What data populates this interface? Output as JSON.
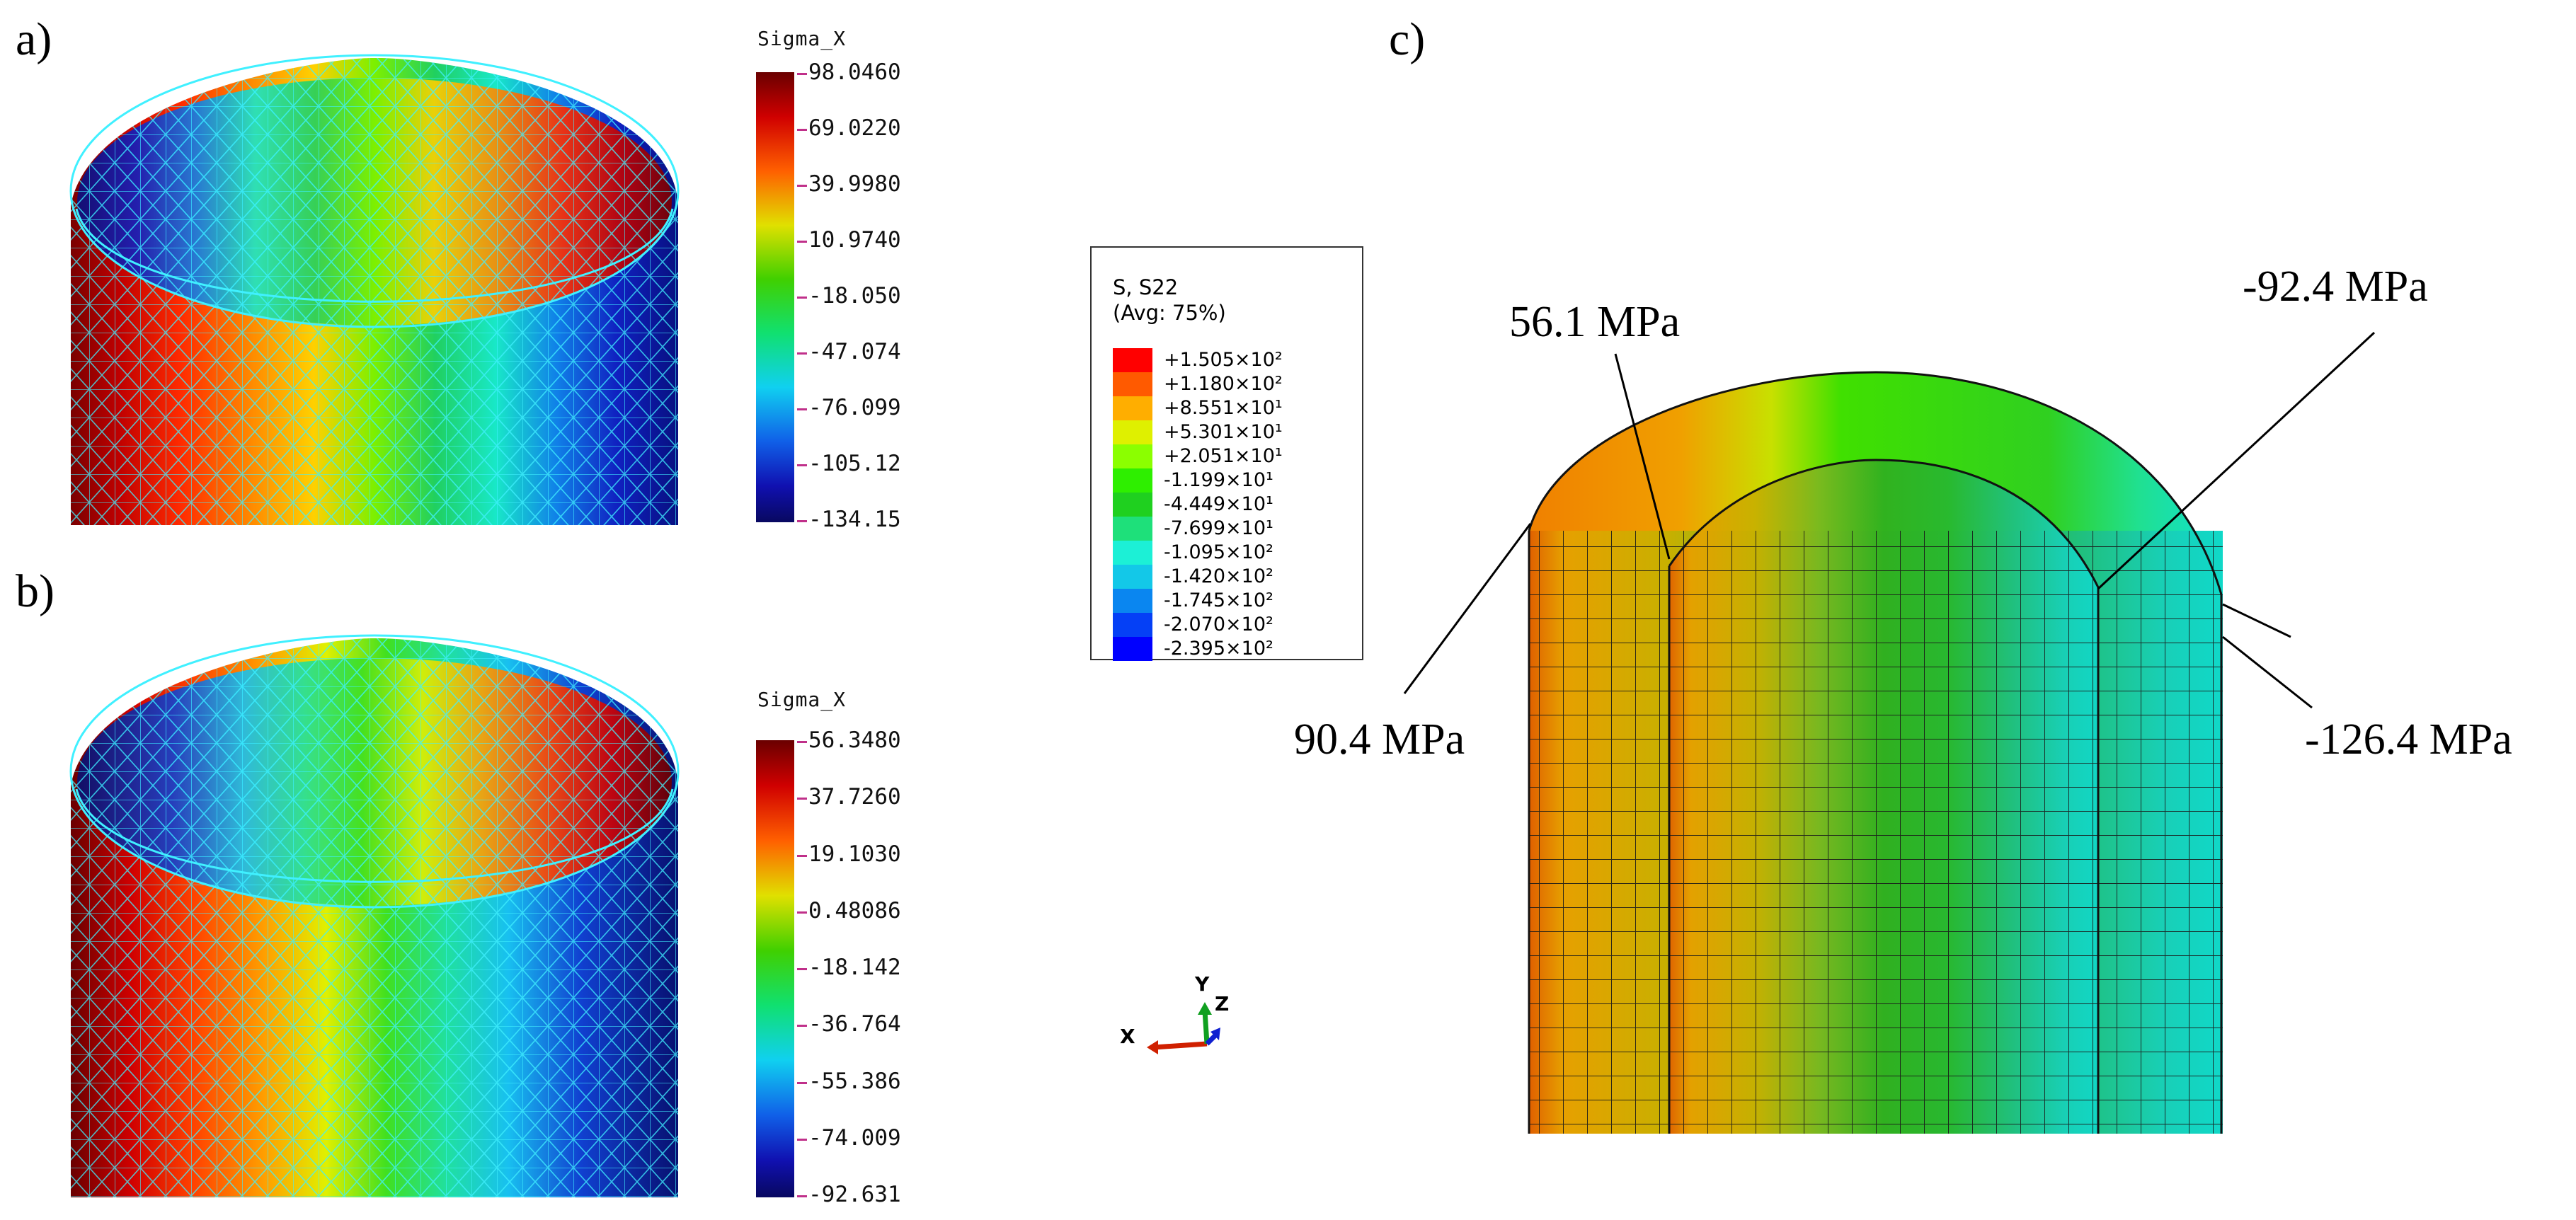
{
  "panels": {
    "a": {
      "label": "a)"
    },
    "b": {
      "label": "b)"
    },
    "c": {
      "label": "c)"
    }
  },
  "colorbar_a": {
    "title": "Sigma_X",
    "values": [
      "98.0460",
      "69.0220",
      "39.9980",
      "10.9740",
      "-18.050",
      "-47.074",
      "-76.099",
      "-105.12",
      "-134.15"
    ]
  },
  "colorbar_b": {
    "title": "Sigma_X",
    "values": [
      "56.3480",
      "37.7260",
      "19.1030",
      "0.48086",
      "-18.142",
      "-36.764",
      "-55.386",
      "-74.009",
      "-92.631"
    ]
  },
  "abaqus_legend": {
    "title1": "S, S22",
    "title2": "(Avg: 75%)",
    "entries": [
      {
        "label": "+1.505×10²",
        "color": "#ff0000"
      },
      {
        "label": "+1.180×10²",
        "color": "#ff5a00"
      },
      {
        "label": "+8.551×10¹",
        "color": "#ffae00"
      },
      {
        "label": "+5.301×10¹",
        "color": "#dff000"
      },
      {
        "label": "+2.051×10¹",
        "color": "#8bff00"
      },
      {
        "label": "-1.199×10¹",
        "color": "#2eef00"
      },
      {
        "label": "-4.449×10¹",
        "color": "#1fd01f"
      },
      {
        "label": "-7.699×10¹",
        "color": "#1ee07a"
      },
      {
        "label": "-1.095×10²",
        "color": "#1cf0d6"
      },
      {
        "label": "-1.420×10²",
        "color": "#13c8e8"
      },
      {
        "label": "-1.745×10²",
        "color": "#0a86f0"
      },
      {
        "label": "-2.070×10²",
        "color": "#0540f6"
      },
      {
        "label": "-2.395×10²",
        "color": "#0000ff"
      }
    ]
  },
  "triad": {
    "x": "X",
    "y": "Y",
    "z": "Z"
  },
  "annotations": {
    "outer_left": "90.4 MPa",
    "inner_left": "56.1 MPa",
    "inner_right": "-92.4 MPa",
    "outer_right": "-126.4 MPa"
  }
}
